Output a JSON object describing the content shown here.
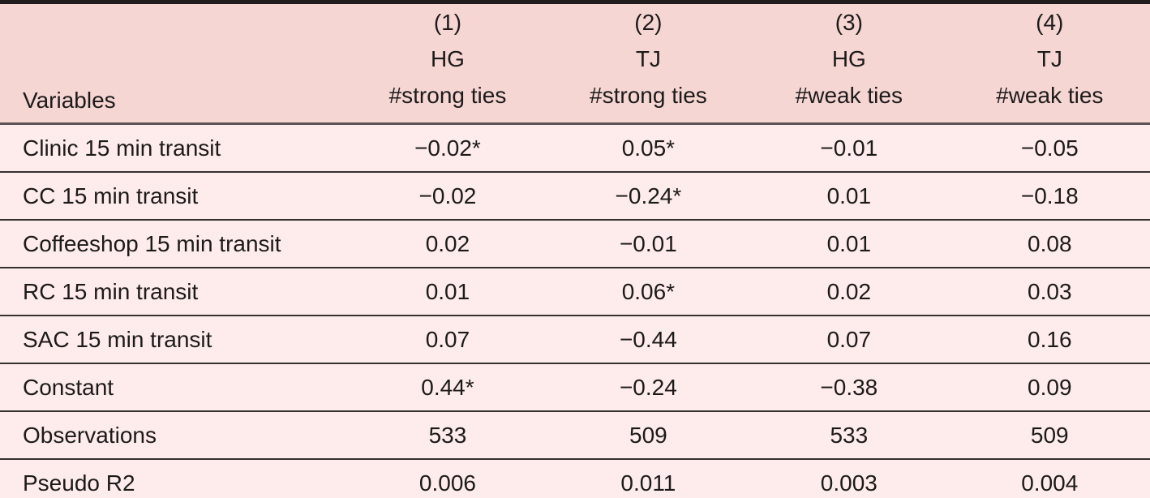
{
  "table": {
    "header": {
      "variables_label": "Variables",
      "columns": [
        {
          "num": "(1)",
          "group": "HG",
          "measure": "#strong ties"
        },
        {
          "num": "(2)",
          "group": "TJ",
          "measure": "#strong ties"
        },
        {
          "num": "(3)",
          "group": "HG",
          "measure": "#weak ties"
        },
        {
          "num": "(4)",
          "group": "TJ",
          "measure": "#weak ties"
        }
      ]
    },
    "rows": [
      {
        "label": "Clinic 15 min transit",
        "values": [
          "−0.02*",
          "0.05*",
          "−0.01",
          "−0.05"
        ]
      },
      {
        "label": "CC 15 min transit",
        "values": [
          "−0.02",
          "−0.24*",
          "0.01",
          "−0.18"
        ]
      },
      {
        "label": "Coffeeshop 15 min transit",
        "values": [
          "0.02",
          "−0.01",
          "0.01",
          "0.08"
        ]
      },
      {
        "label": "RC 15 min transit",
        "values": [
          "0.01",
          "0.06*",
          "0.02",
          "0.03"
        ]
      },
      {
        "label": "SAC 15 min transit",
        "values": [
          "0.07",
          "−0.44",
          "0.07",
          "0.16"
        ]
      },
      {
        "label": "Constant",
        "values": [
          "0.44*",
          "−0.24",
          "−0.38",
          "0.09"
        ]
      },
      {
        "label": "Observations",
        "values": [
          "533",
          "509",
          "533",
          "509"
        ]
      },
      {
        "label": "Pseudo R2",
        "values": [
          "0.006",
          "0.011",
          "0.003",
          "0.004"
        ]
      }
    ]
  },
  "colors": {
    "header_bg": "#f5d6d3",
    "body_bg": "#fdeceb",
    "text": "#1d1a1a",
    "rule_heavy": "#211d1e",
    "rule_mid": "#5d5455",
    "rule_row": "#363031"
  }
}
